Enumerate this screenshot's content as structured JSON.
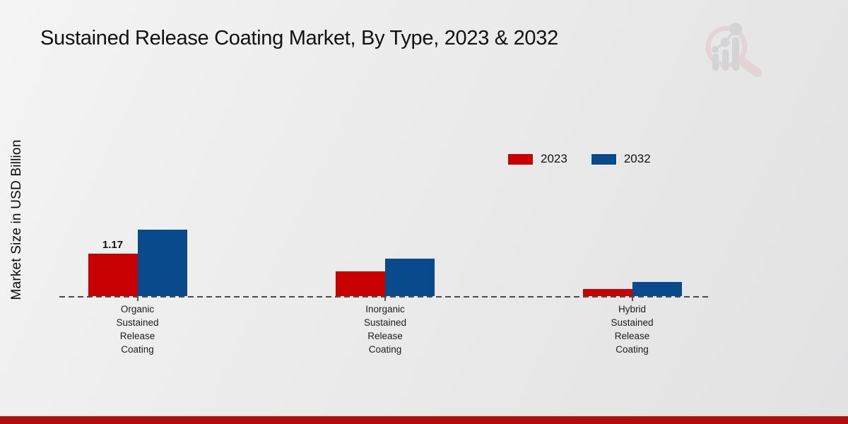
{
  "page": {
    "title": "Sustained Release Coating Market, By Type, 2023 & 2032"
  },
  "colors": {
    "series_2023": "#c80001",
    "series_2032": "#084a8b",
    "footer_bar": "#b00d0d",
    "baseline": "#4c4c4c",
    "logo_ring": "#e5c6c9",
    "logo_glyph": "#c5c6ca"
  },
  "chart_data": {
    "type": "bar",
    "title": "Sustained Release Coating Market, By Type, 2023 & 2032",
    "ylabel": "Market Size in USD Billion",
    "xlabel": "",
    "categories": [
      "Organic Sustained Release Coating",
      "Inorganic Sustained Release Coating",
      "Hybrid Sustained Release Coating"
    ],
    "series": [
      {
        "name": "2023",
        "color": "#c80001",
        "values": [
          1.17,
          0.67,
          0.2
        ]
      },
      {
        "name": "2032",
        "color": "#084a8b",
        "values": [
          1.81,
          1.02,
          0.39
        ]
      }
    ],
    "data_labels": [
      {
        "series_index": 0,
        "category_index": 0,
        "text": "1.17"
      }
    ],
    "legend": [
      "2023",
      "2032"
    ],
    "legend_position": "upper-right",
    "baseline_style": "dashed",
    "grid": false,
    "ylim": [
      0,
      2.0
    ]
  },
  "footer": {}
}
